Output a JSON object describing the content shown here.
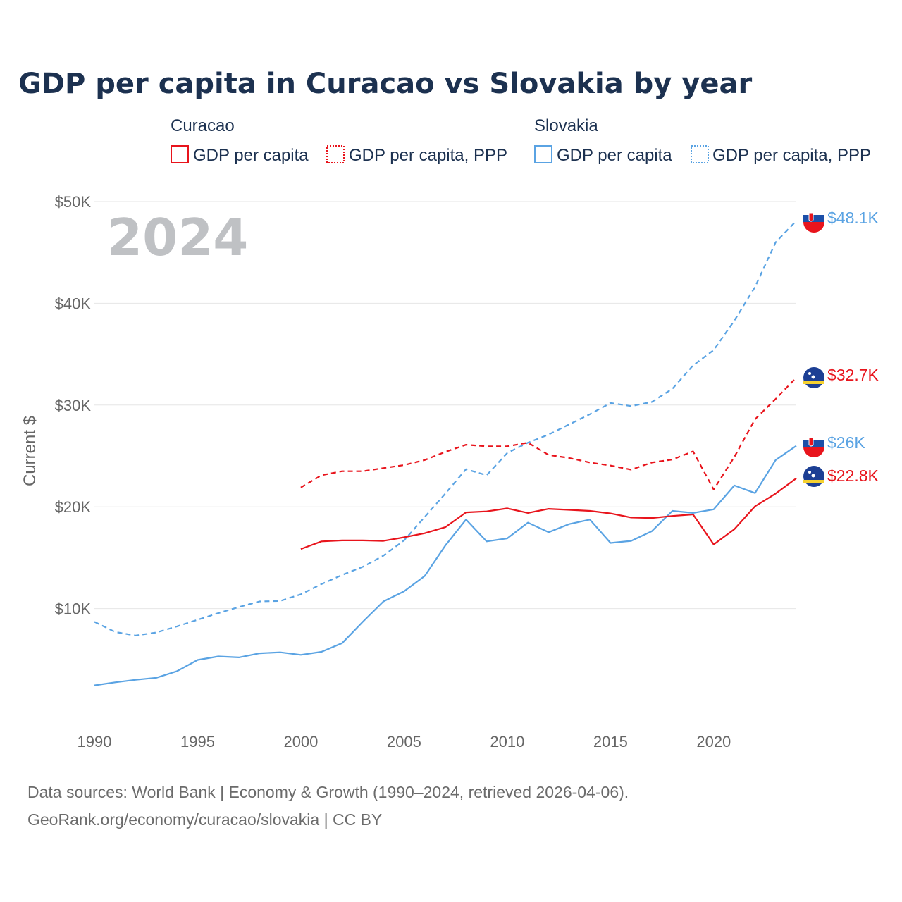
{
  "title": "GDP per capita in Curacao vs Slovakia by year",
  "year_label": "2024",
  "legend": {
    "groups": [
      {
        "country": "Curacao",
        "items": [
          "GDP per capita",
          "GDP per capita, PPP"
        ]
      },
      {
        "country": "Slovakia",
        "items": [
          "GDP per capita",
          "GDP per capita, PPP"
        ]
      }
    ]
  },
  "source": {
    "line1": "Data sources: World Bank | Economy & Growth (1990–2024, retrieved 2026-04-06).",
    "line2": "GeoRank.org/economy/curacao/slovakia | CC BY"
  },
  "colors": {
    "curacao": "#e8141c",
    "slovakia": "#5aa3e3"
  },
  "chart_data": {
    "type": "line",
    "title": "GDP per capita in Curacao vs Slovakia by year",
    "xlabel": "",
    "ylabel": "Current $",
    "xlim": [
      1990,
      2024
    ],
    "ylim": [
      0,
      50000
    ],
    "x_ticks": [
      1990,
      1995,
      2000,
      2005,
      2010,
      2015,
      2020
    ],
    "x_tick_labels": [
      "1990",
      "1995",
      "2000",
      "2005",
      "2010",
      "2015",
      "2020"
    ],
    "y_ticks": [
      10000,
      20000,
      30000,
      40000,
      50000
    ],
    "y_tick_labels": [
      "$10K",
      "$20K",
      "$30K",
      "$40K",
      "$50K"
    ],
    "grid": true,
    "series": [
      {
        "name": "Slovakia GDP per capita, PPP",
        "country": "slovakia",
        "dashed": true,
        "end_label": "$48.1K",
        "points": [
          [
            1990,
            8700
          ],
          [
            1991,
            7700
          ],
          [
            1992,
            7350
          ],
          [
            1993,
            7650
          ],
          [
            1994,
            8250
          ],
          [
            1995,
            8900
          ],
          [
            1996,
            9550
          ],
          [
            1997,
            10150
          ],
          [
            1998,
            10700
          ],
          [
            1999,
            10750
          ],
          [
            2000,
            11400
          ],
          [
            2001,
            12400
          ],
          [
            2002,
            13300
          ],
          [
            2003,
            14100
          ],
          [
            2004,
            15200
          ],
          [
            2005,
            16700
          ],
          [
            2006,
            19000
          ],
          [
            2007,
            21300
          ],
          [
            2008,
            23700
          ],
          [
            2009,
            23100
          ],
          [
            2010,
            25300
          ],
          [
            2011,
            26300
          ],
          [
            2012,
            27100
          ],
          [
            2013,
            28100
          ],
          [
            2014,
            29100
          ],
          [
            2015,
            30200
          ],
          [
            2016,
            29900
          ],
          [
            2017,
            30300
          ],
          [
            2018,
            31600
          ],
          [
            2019,
            33900
          ],
          [
            2020,
            35400
          ],
          [
            2021,
            38300
          ],
          [
            2022,
            41600
          ],
          [
            2023,
            46000
          ],
          [
            2024,
            48100
          ]
        ]
      },
      {
        "name": "Curacao GDP per capita, PPP",
        "country": "curacao",
        "dashed": true,
        "end_label": "$32.7K",
        "points": [
          [
            2000,
            21900
          ],
          [
            2001,
            23100
          ],
          [
            2002,
            23500
          ],
          [
            2003,
            23500
          ],
          [
            2004,
            23800
          ],
          [
            2005,
            24100
          ],
          [
            2006,
            24600
          ],
          [
            2007,
            25400
          ],
          [
            2008,
            26100
          ],
          [
            2009,
            25950
          ],
          [
            2010,
            25950
          ],
          [
            2011,
            26300
          ],
          [
            2012,
            25100
          ],
          [
            2013,
            24800
          ],
          [
            2014,
            24350
          ],
          [
            2015,
            24050
          ],
          [
            2016,
            23650
          ],
          [
            2017,
            24350
          ],
          [
            2018,
            24650
          ],
          [
            2019,
            25450
          ],
          [
            2020,
            21700
          ],
          [
            2021,
            24900
          ],
          [
            2022,
            28600
          ],
          [
            2023,
            30600
          ],
          [
            2024,
            32700
          ]
        ]
      },
      {
        "name": "Slovakia GDP per capita",
        "country": "slovakia",
        "dashed": false,
        "end_label": "$26K",
        "points": [
          [
            1990,
            2450
          ],
          [
            1991,
            2750
          ],
          [
            1992,
            3000
          ],
          [
            1993,
            3200
          ],
          [
            1994,
            3850
          ],
          [
            1995,
            4950
          ],
          [
            1996,
            5300
          ],
          [
            1997,
            5200
          ],
          [
            1998,
            5600
          ],
          [
            1999,
            5700
          ],
          [
            2000,
            5450
          ],
          [
            2001,
            5750
          ],
          [
            2002,
            6600
          ],
          [
            2003,
            8700
          ],
          [
            2004,
            10700
          ],
          [
            2005,
            11700
          ],
          [
            2006,
            13200
          ],
          [
            2007,
            16200
          ],
          [
            2008,
            18750
          ],
          [
            2009,
            16600
          ],
          [
            2010,
            16900
          ],
          [
            2011,
            18450
          ],
          [
            2012,
            17500
          ],
          [
            2013,
            18300
          ],
          [
            2014,
            18750
          ],
          [
            2015,
            16450
          ],
          [
            2016,
            16650
          ],
          [
            2017,
            17600
          ],
          [
            2018,
            19600
          ],
          [
            2019,
            19400
          ],
          [
            2020,
            19750
          ],
          [
            2021,
            22100
          ],
          [
            2022,
            21350
          ],
          [
            2023,
            24600
          ],
          [
            2024,
            26000
          ]
        ]
      },
      {
        "name": "Curacao GDP per capita",
        "country": "curacao",
        "dashed": false,
        "end_label": "$22.8K",
        "points": [
          [
            2000,
            15850
          ],
          [
            2001,
            16600
          ],
          [
            2002,
            16700
          ],
          [
            2003,
            16700
          ],
          [
            2004,
            16650
          ],
          [
            2005,
            17000
          ],
          [
            2006,
            17400
          ],
          [
            2007,
            18000
          ],
          [
            2008,
            19450
          ],
          [
            2009,
            19550
          ],
          [
            2010,
            19850
          ],
          [
            2011,
            19400
          ],
          [
            2012,
            19800
          ],
          [
            2013,
            19700
          ],
          [
            2014,
            19600
          ],
          [
            2015,
            19350
          ],
          [
            2016,
            18950
          ],
          [
            2017,
            18900
          ],
          [
            2018,
            19100
          ],
          [
            2019,
            19250
          ],
          [
            2020,
            16300
          ],
          [
            2021,
            17800
          ],
          [
            2022,
            20050
          ],
          [
            2023,
            21300
          ],
          [
            2024,
            22800
          ]
        ]
      }
    ]
  }
}
